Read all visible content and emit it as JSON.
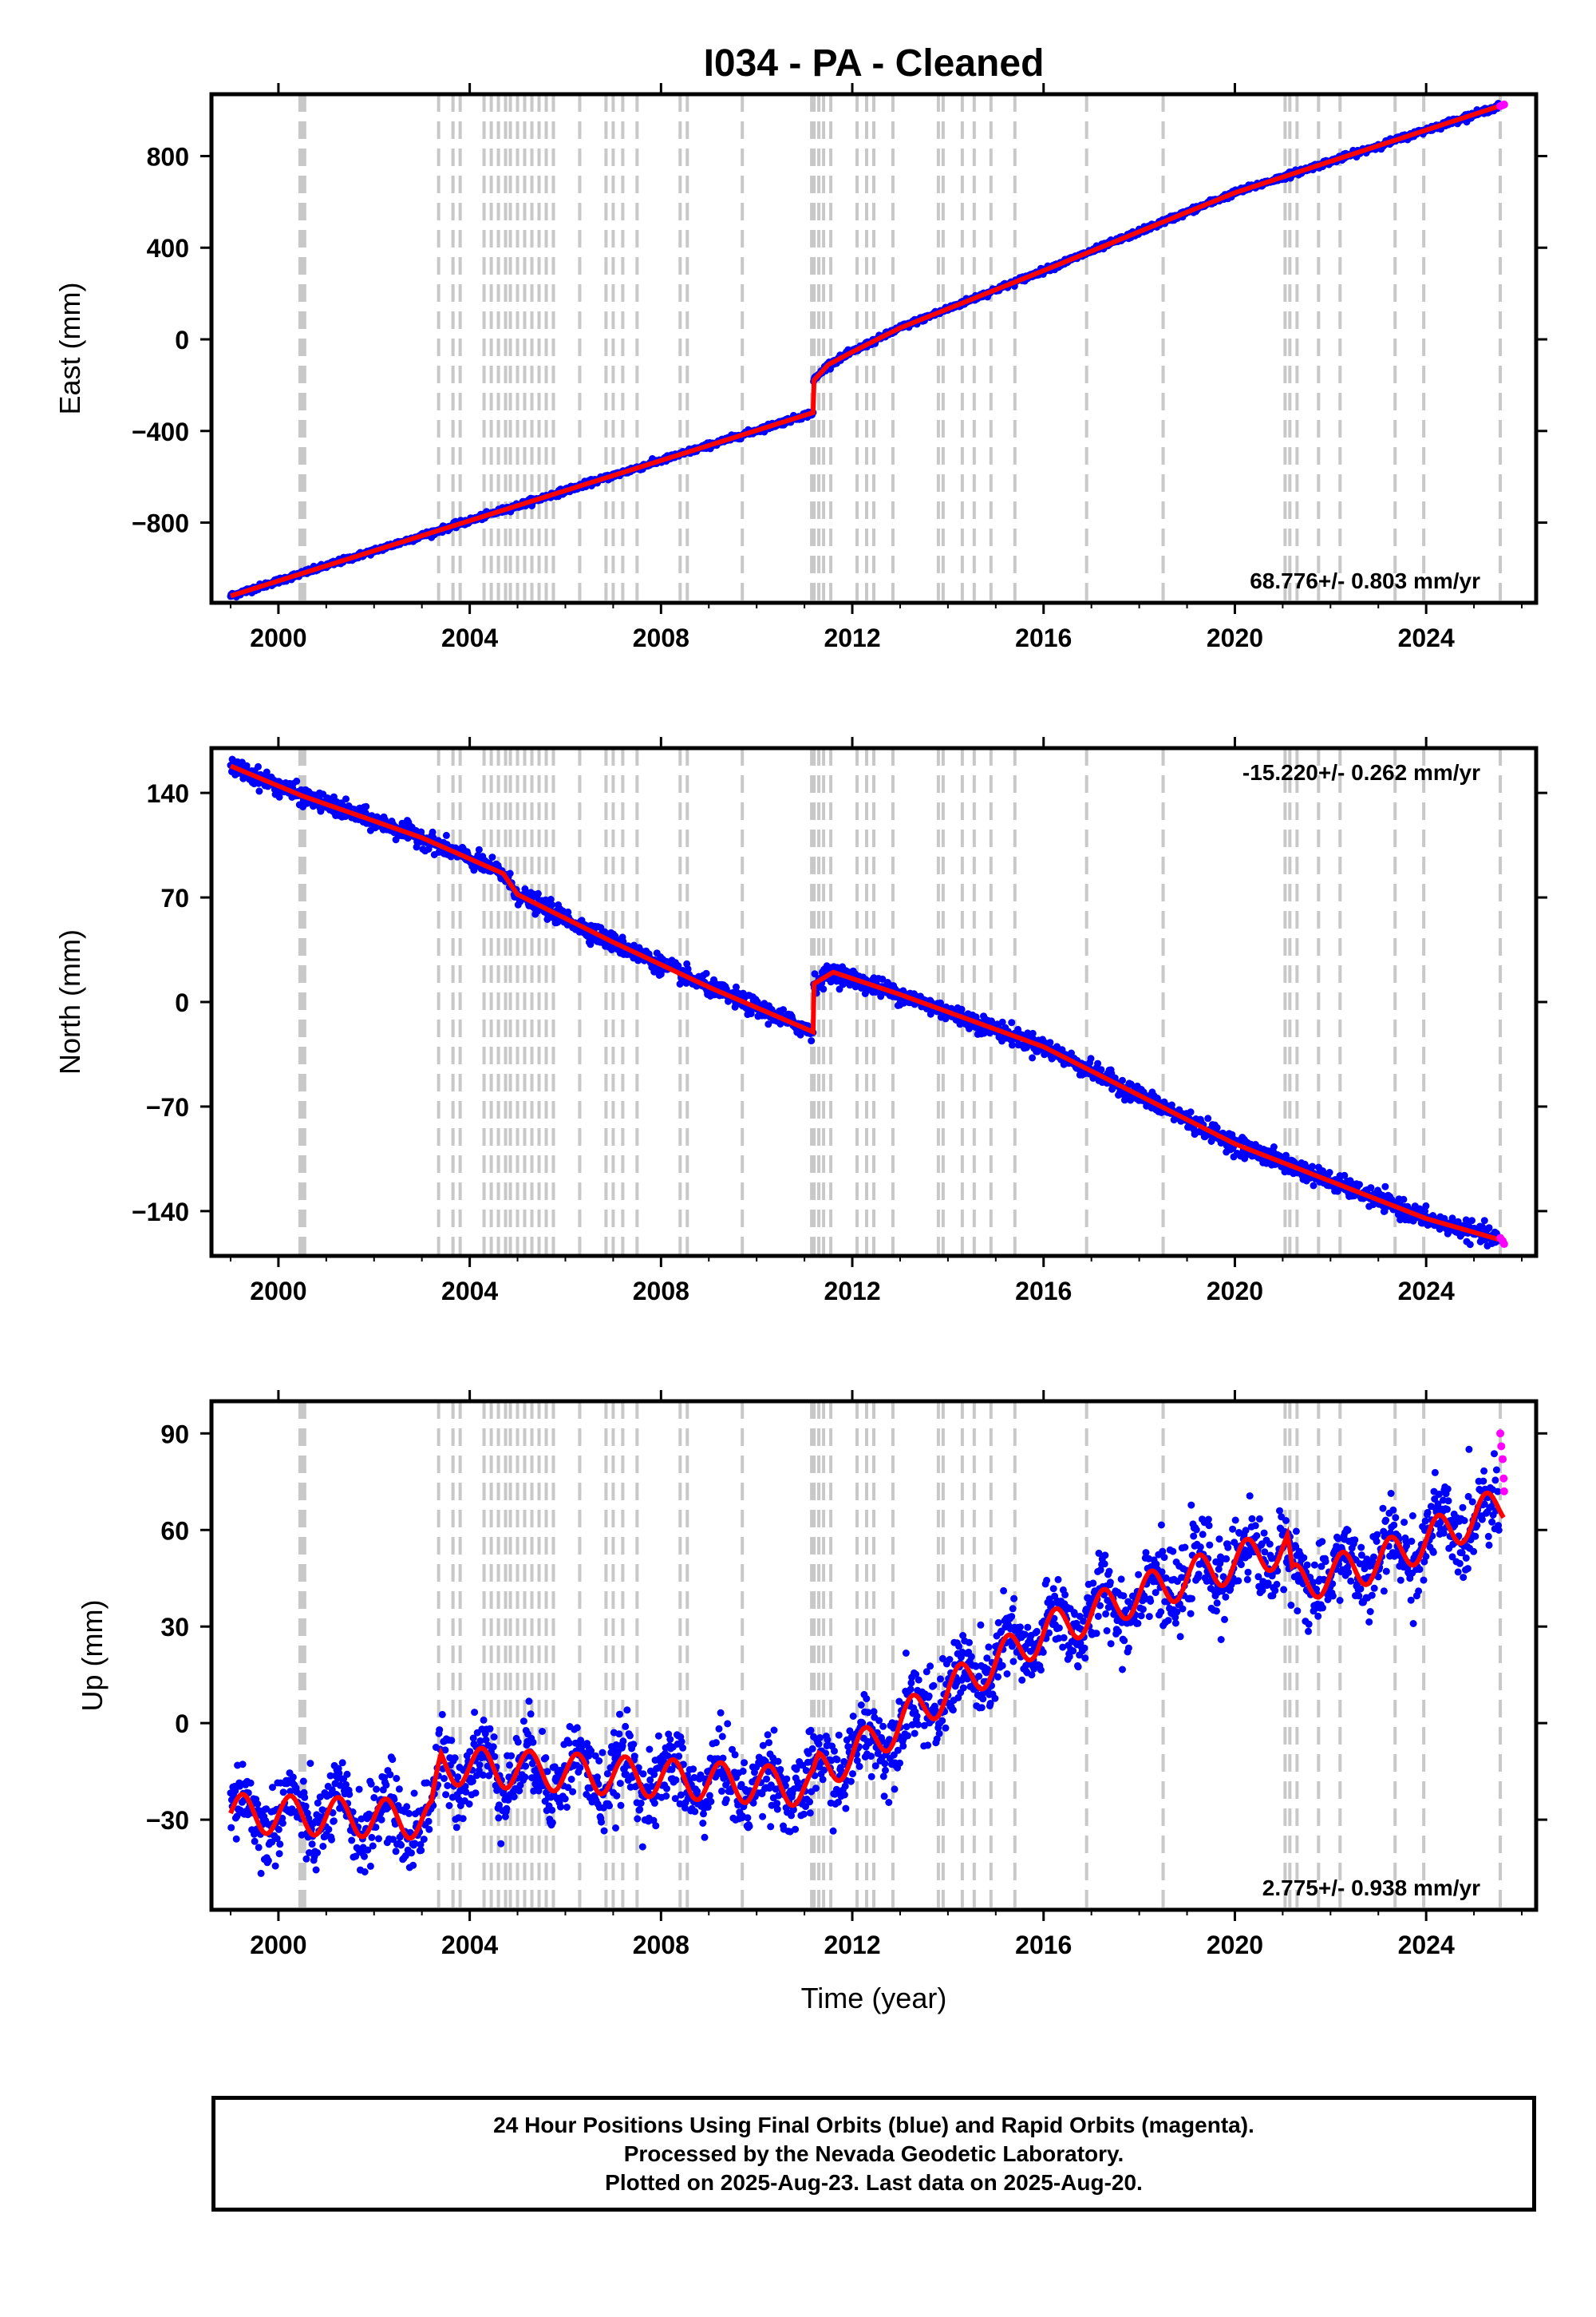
{
  "title": "I034  - PA - Cleaned",
  "xlabel": "Time (year)",
  "x_ticks": [
    2000,
    2004,
    2008,
    2012,
    2016,
    2020,
    2024
  ],
  "footer": {
    "line1": "24 Hour Positions Using Final Orbits (blue) and Rapid Orbits (magenta).",
    "line2": "Processed by the Nevada Geodetic Laboratory.",
    "line3": "Plotted on 2025-Aug-23. Last data on 2025-Aug-20."
  },
  "colors": {
    "final_orbits": "#0000ff",
    "rapid_orbits": "#ff00ff",
    "model": "#ff0000",
    "equipment_change": "#c8c8c8"
  },
  "equipment_change_years": [
    2000.45,
    2000.5,
    2000.55,
    2003.35,
    2003.65,
    2003.8,
    2004.3,
    2004.45,
    2004.6,
    2004.75,
    2004.85,
    2005.0,
    2005.15,
    2005.3,
    2005.45,
    2005.6,
    2005.75,
    2006.3,
    2006.85,
    2007.0,
    2007.2,
    2007.5,
    2008.4,
    2008.55,
    2009.7,
    2011.15,
    2011.2,
    2011.3,
    2011.4,
    2011.55,
    2012.1,
    2012.3,
    2012.45,
    2012.85,
    2013.8,
    2013.9,
    2014.3,
    2014.55,
    2014.9,
    2015.4,
    2016.9,
    2018.5,
    2021.05,
    2021.15,
    2021.3,
    2021.75,
    2022.2,
    2023.35,
    2023.95,
    2025.55
  ],
  "chart_data": [
    {
      "type": "scatter",
      "name": "East",
      "ylabel": "East (mm)",
      "ylim": [
        -1150,
        1070
      ],
      "xlim": [
        1998.6,
        2026.3
      ],
      "y_ticks": [
        -800,
        -400,
        0,
        400,
        800
      ],
      "rate_label": "68.776+/- 0.803 mm/yr",
      "rate_position": "bottom-right",
      "model": {
        "x": [
          1999.0,
          2011.18,
          2011.19,
          2011.5,
          2012.0,
          2013.0,
          2016.0,
          2020.0,
          2025.63
        ],
        "y": [
          -1120,
          -320,
          -180,
          -110,
          -55,
          50,
          300,
          640,
          1025
        ]
      },
      "noise_mm": 6,
      "rapid_points": {
        "x": [
          2025.55,
          2025.6,
          2025.63
        ],
        "y": [
          1018,
          1022,
          1025
        ]
      }
    },
    {
      "type": "scatter",
      "name": "North",
      "ylabel": "North (mm)",
      "ylim": [
        -170,
        170
      ],
      "xlim": [
        1998.6,
        2026.3
      ],
      "y_ticks": [
        -140,
        -70,
        0,
        70,
        140
      ],
      "rate_label": "-15.220+/- 0.262 mm/yr",
      "rate_position": "top-right",
      "model": {
        "x": [
          1999.0,
          2000.5,
          2003.0,
          2004.7,
          2005.0,
          2007.0,
          2009.0,
          2011.18,
          2011.19,
          2011.6,
          2013.0,
          2016.0,
          2020.0,
          2024.0,
          2025.63
        ],
        "y": [
          158,
          138,
          110,
          86,
          72,
          40,
          10,
          -20,
          12,
          20,
          5,
          -30,
          -95,
          -145,
          -160
        ]
      },
      "noise_mm": 3,
      "rapid_points": {
        "x": [
          2025.55,
          2025.6,
          2025.63
        ],
        "y": [
          -158,
          -160,
          -162
        ]
      }
    },
    {
      "type": "scatter",
      "name": "Up",
      "ylabel": "Up (mm)",
      "ylim": [
        -58,
        100
      ],
      "xlim": [
        1998.6,
        2026.3
      ],
      "y_ticks": [
        -30,
        0,
        30,
        60,
        90
      ],
      "rate_label": "2.775+/- 0.938 mm/yr",
      "rate_position": "bottom-right",
      "model": {
        "x": [
          1999.0,
          2003.2,
          2003.4,
          2011.18,
          2011.3,
          2012.0,
          2014.0,
          2016.0,
          2018.0,
          2020.0,
          2021.1,
          2021.2,
          2023.0,
          2025.63
        ],
        "y": [
          -28,
          -30,
          -13,
          -20,
          -15,
          -10,
          10,
          28,
          40,
          50,
          55,
          43,
          50,
          68
        ]
      },
      "seasonal_amplitude_mm": 6,
      "noise_mm": 6,
      "rapid_points": {
        "x": [
          2025.55,
          2025.57,
          2025.6,
          2025.62,
          2025.63
        ],
        "y": [
          90,
          86,
          82,
          76,
          72
        ]
      }
    }
  ]
}
